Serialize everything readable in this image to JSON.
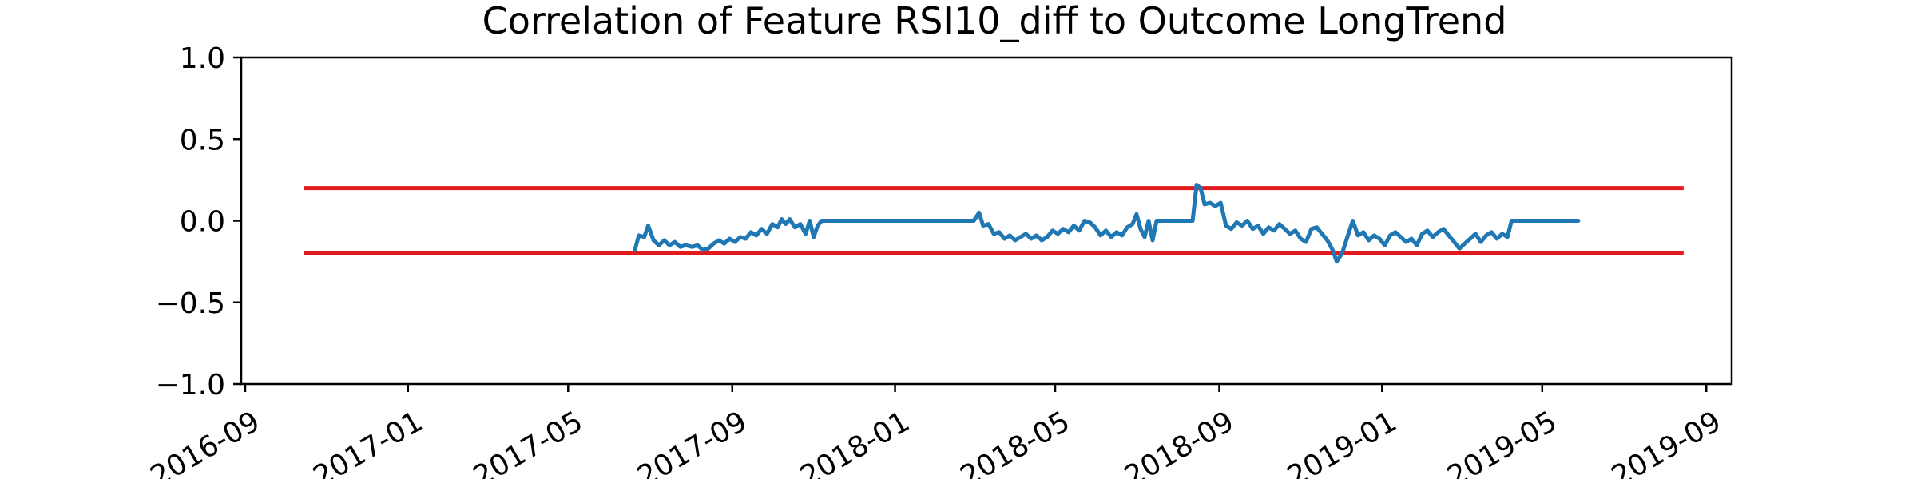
{
  "chart_data": {
    "type": "line",
    "title": "Correlation of Feature RSI10_diff to Outcome LongTrend",
    "xlabel": "",
    "ylabel": "",
    "ylim": [
      -1.0,
      1.0
    ],
    "xlim": [
      "2016-08-29",
      "2019-09-20"
    ],
    "grid": false,
    "yticks": [
      {
        "value": -1.0,
        "label": "−1.0"
      },
      {
        "value": -0.5,
        "label": "−0.5"
      },
      {
        "value": 0.0,
        "label": "0.0"
      },
      {
        "value": 0.5,
        "label": "0.5"
      },
      {
        "value": 1.0,
        "label": "1.0"
      }
    ],
    "xticks": [
      {
        "value": "2016-09-01",
        "label": "2016-09"
      },
      {
        "value": "2017-01-01",
        "label": "2017-01"
      },
      {
        "value": "2017-05-01",
        "label": "2017-05"
      },
      {
        "value": "2017-09-01",
        "label": "2017-09"
      },
      {
        "value": "2018-01-01",
        "label": "2018-01"
      },
      {
        "value": "2018-05-01",
        "label": "2018-05"
      },
      {
        "value": "2018-09-01",
        "label": "2018-09"
      },
      {
        "value": "2019-01-01",
        "label": "2019-01"
      },
      {
        "value": "2019-05-01",
        "label": "2019-05"
      },
      {
        "value": "2019-09-01",
        "label": "2019-09"
      }
    ],
    "reference_lines": [
      {
        "y": 0.2,
        "x": [
          "2016-10-15",
          "2019-08-15"
        ],
        "color": "#e31a1c"
      },
      {
        "y": -0.2,
        "x": [
          "2016-10-15",
          "2019-08-15"
        ],
        "color": "#e31a1c"
      }
    ],
    "series": [
      {
        "color": "#1f77b4",
        "points": [
          [
            "2017-06-20",
            -0.18
          ],
          [
            "2017-06-23",
            -0.09
          ],
          [
            "2017-06-27",
            -0.1
          ],
          [
            "2017-06-30",
            -0.03
          ],
          [
            "2017-07-04",
            -0.12
          ],
          [
            "2017-07-08",
            -0.15
          ],
          [
            "2017-07-12",
            -0.12
          ],
          [
            "2017-07-16",
            -0.15
          ],
          [
            "2017-07-20",
            -0.13
          ],
          [
            "2017-07-24",
            -0.16
          ],
          [
            "2017-07-28",
            -0.15
          ],
          [
            "2017-08-02",
            -0.16
          ],
          [
            "2017-08-06",
            -0.15
          ],
          [
            "2017-08-10",
            -0.18
          ],
          [
            "2017-08-14",
            -0.17
          ],
          [
            "2017-08-18",
            -0.14
          ],
          [
            "2017-08-22",
            -0.12
          ],
          [
            "2017-08-26",
            -0.14
          ],
          [
            "2017-08-30",
            -0.11
          ],
          [
            "2017-09-03",
            -0.13
          ],
          [
            "2017-09-07",
            -0.1
          ],
          [
            "2017-09-11",
            -0.11
          ],
          [
            "2017-09-15",
            -0.07
          ],
          [
            "2017-09-19",
            -0.09
          ],
          [
            "2017-09-23",
            -0.05
          ],
          [
            "2017-09-27",
            -0.08
          ],
          [
            "2017-10-01",
            -0.02
          ],
          [
            "2017-10-05",
            -0.04
          ],
          [
            "2017-10-08",
            0.01
          ],
          [
            "2017-10-11",
            -0.02
          ],
          [
            "2017-10-14",
            0.01
          ],
          [
            "2017-10-18",
            -0.04
          ],
          [
            "2017-10-22",
            -0.02
          ],
          [
            "2017-10-26",
            -0.08
          ],
          [
            "2017-10-29",
            0.0
          ],
          [
            "2017-11-01",
            -0.1
          ],
          [
            "2017-11-04",
            -0.03
          ],
          [
            "2017-11-07",
            0.0
          ],
          [
            "2018-03-01",
            0.0
          ],
          [
            "2018-03-05",
            0.05
          ],
          [
            "2018-03-08",
            -0.03
          ],
          [
            "2018-03-12",
            -0.02
          ],
          [
            "2018-03-16",
            -0.08
          ],
          [
            "2018-03-20",
            -0.07
          ],
          [
            "2018-03-24",
            -0.11
          ],
          [
            "2018-03-28",
            -0.09
          ],
          [
            "2018-04-01",
            -0.12
          ],
          [
            "2018-04-05",
            -0.1
          ],
          [
            "2018-04-09",
            -0.08
          ],
          [
            "2018-04-13",
            -0.11
          ],
          [
            "2018-04-17",
            -0.09
          ],
          [
            "2018-04-21",
            -0.12
          ],
          [
            "2018-04-25",
            -0.1
          ],
          [
            "2018-04-29",
            -0.06
          ],
          [
            "2018-05-03",
            -0.08
          ],
          [
            "2018-05-07",
            -0.05
          ],
          [
            "2018-05-11",
            -0.07
          ],
          [
            "2018-05-15",
            -0.03
          ],
          [
            "2018-05-19",
            -0.06
          ],
          [
            "2018-05-23",
            0.0
          ],
          [
            "2018-05-27",
            -0.01
          ],
          [
            "2018-05-31",
            -0.04
          ],
          [
            "2018-06-04",
            -0.09
          ],
          [
            "2018-06-08",
            -0.06
          ],
          [
            "2018-06-12",
            -0.1
          ],
          [
            "2018-06-16",
            -0.07
          ],
          [
            "2018-06-20",
            -0.09
          ],
          [
            "2018-06-24",
            -0.04
          ],
          [
            "2018-06-28",
            -0.02
          ],
          [
            "2018-07-01",
            0.04
          ],
          [
            "2018-07-04",
            -0.05
          ],
          [
            "2018-07-07",
            -0.1
          ],
          [
            "2018-07-10",
            0.0
          ],
          [
            "2018-07-13",
            -0.12
          ],
          [
            "2018-07-16",
            0.0
          ],
          [
            "2018-08-12",
            0.0
          ],
          [
            "2018-08-15",
            0.22
          ],
          [
            "2018-08-18",
            0.2
          ],
          [
            "2018-08-21",
            0.1
          ],
          [
            "2018-08-25",
            0.11
          ],
          [
            "2018-08-29",
            0.09
          ],
          [
            "2018-09-02",
            0.11
          ],
          [
            "2018-09-06",
            -0.03
          ],
          [
            "2018-09-10",
            -0.05
          ],
          [
            "2018-09-14",
            -0.01
          ],
          [
            "2018-09-18",
            -0.03
          ],
          [
            "2018-09-22",
            0.0
          ],
          [
            "2018-09-26",
            -0.05
          ],
          [
            "2018-09-30",
            -0.03
          ],
          [
            "2018-10-04",
            -0.08
          ],
          [
            "2018-10-08",
            -0.04
          ],
          [
            "2018-10-12",
            -0.06
          ],
          [
            "2018-10-16",
            -0.02
          ],
          [
            "2018-10-20",
            -0.05
          ],
          [
            "2018-10-24",
            -0.08
          ],
          [
            "2018-10-28",
            -0.06
          ],
          [
            "2018-11-01",
            -0.11
          ],
          [
            "2018-11-05",
            -0.13
          ],
          [
            "2018-11-09",
            -0.05
          ],
          [
            "2018-11-13",
            -0.04
          ],
          [
            "2018-11-17",
            -0.08
          ],
          [
            "2018-11-21",
            -0.12
          ],
          [
            "2018-11-25",
            -0.18
          ],
          [
            "2018-11-28",
            -0.25
          ],
          [
            "2018-12-02",
            -0.2
          ],
          [
            "2018-12-06",
            -0.1
          ],
          [
            "2018-12-10",
            0.0
          ],
          [
            "2018-12-14",
            -0.09
          ],
          [
            "2018-12-18",
            -0.07
          ],
          [
            "2018-12-22",
            -0.12
          ],
          [
            "2018-12-26",
            -0.09
          ],
          [
            "2018-12-30",
            -0.11
          ],
          [
            "2019-01-03",
            -0.15
          ],
          [
            "2019-01-07",
            -0.09
          ],
          [
            "2019-01-11",
            -0.07
          ],
          [
            "2019-01-15",
            -0.1
          ],
          [
            "2019-01-19",
            -0.13
          ],
          [
            "2019-01-23",
            -0.11
          ],
          [
            "2019-01-27",
            -0.15
          ],
          [
            "2019-01-31",
            -0.08
          ],
          [
            "2019-02-04",
            -0.06
          ],
          [
            "2019-02-08",
            -0.1
          ],
          [
            "2019-02-12",
            -0.07
          ],
          [
            "2019-02-16",
            -0.05
          ],
          [
            "2019-02-20",
            -0.09
          ],
          [
            "2019-02-24",
            -0.13
          ],
          [
            "2019-02-28",
            -0.17
          ],
          [
            "2019-03-04",
            -0.14
          ],
          [
            "2019-03-08",
            -0.11
          ],
          [
            "2019-03-12",
            -0.08
          ],
          [
            "2019-03-16",
            -0.13
          ],
          [
            "2019-03-20",
            -0.09
          ],
          [
            "2019-03-24",
            -0.07
          ],
          [
            "2019-03-28",
            -0.11
          ],
          [
            "2019-04-01",
            -0.08
          ],
          [
            "2019-04-05",
            -0.1
          ],
          [
            "2019-04-08",
            0.0
          ],
          [
            "2019-05-28",
            0.0
          ]
        ]
      }
    ]
  }
}
